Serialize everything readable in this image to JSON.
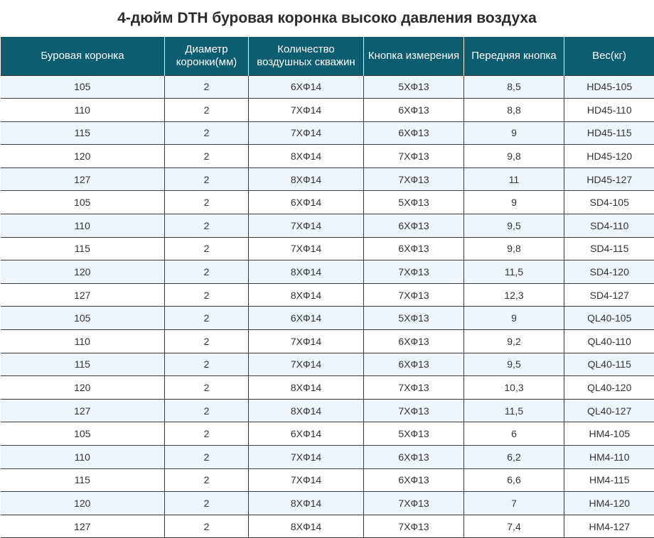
{
  "title": "4-дюйм DTH буровая коронка высоко давления воздуха",
  "columns": [
    {
      "line1": "Буровая коронка",
      "line2": ""
    },
    {
      "line1": "Диаметр",
      "line2": "коронки(мм)"
    },
    {
      "line1": "Количество",
      "line2": "воздушных скважин"
    },
    {
      "line1": "Кнопка измерения",
      "line2": ""
    },
    {
      "line1": "Передняя кнопка",
      "line2": ""
    },
    {
      "line1": "Вес(кг)",
      "line2": ""
    }
  ],
  "rows": [
    [
      "105",
      "2",
      "6XФ14",
      "5XФ13",
      "8,5",
      "HD45-105"
    ],
    [
      "110",
      "2",
      "7XФ14",
      "6XФ13",
      "8,8",
      "HD45-110"
    ],
    [
      "115",
      "2",
      "7XФ14",
      "6XФ13",
      "9",
      "HD45-115"
    ],
    [
      "120",
      "2",
      "8XФ14",
      "7XФ13",
      "9,8",
      "HD45-120"
    ],
    [
      "127",
      "2",
      "8XФ14",
      "7XФ13",
      "11",
      "HD45-127"
    ],
    [
      "105",
      "2",
      "6XФ14",
      "5XФ13",
      "9",
      "SD4-105"
    ],
    [
      "110",
      "2",
      "7XФ14",
      "6XФ13",
      "9,5",
      "SD4-110"
    ],
    [
      "115",
      "2",
      "7XФ14",
      "6XФ13",
      "9,8",
      "SD4-115"
    ],
    [
      "120",
      "2",
      "8XФ14",
      "7XФ13",
      "11,5",
      "SD4-120"
    ],
    [
      "127",
      "2",
      "8XФ14",
      "7XФ13",
      "12,3",
      "SD4-127"
    ],
    [
      "105",
      "2",
      "6XФ14",
      "5XФ13",
      "9",
      "QL40-105"
    ],
    [
      "110",
      "2",
      "7XФ14",
      "6XФ13",
      "9,2",
      "QL40-110"
    ],
    [
      "115",
      "2",
      "7XФ14",
      "6XФ13",
      "9,5",
      "QL40-115"
    ],
    [
      "120",
      "2",
      "8XФ14",
      "7XФ13",
      "10,3",
      "QL40-120"
    ],
    [
      "127",
      "2",
      "8XФ14",
      "7XФ13",
      "11,5",
      "QL40-127"
    ],
    [
      "105",
      "2",
      "6XФ14",
      "5XФ13",
      "6",
      "HM4-105"
    ],
    [
      "110",
      "2",
      "7XФ14",
      "6XФ13",
      "6,2",
      "HM4-110"
    ],
    [
      "115",
      "2",
      "7XФ14",
      "6XФ13",
      "6,6",
      "HM4-115"
    ],
    [
      "120",
      "2",
      "8XФ14",
      "7XФ13",
      "7",
      "HM4-120"
    ],
    [
      "127",
      "2",
      "8XФ14",
      "7XФ13",
      "7,4",
      "HM4-127"
    ]
  ],
  "colors": {
    "header_bg": "#0d5d71",
    "header_text": "#ffffff",
    "row_alt_bg": "#eef6fb",
    "row_bg": "#ffffff",
    "border": "#3a3a3a"
  }
}
